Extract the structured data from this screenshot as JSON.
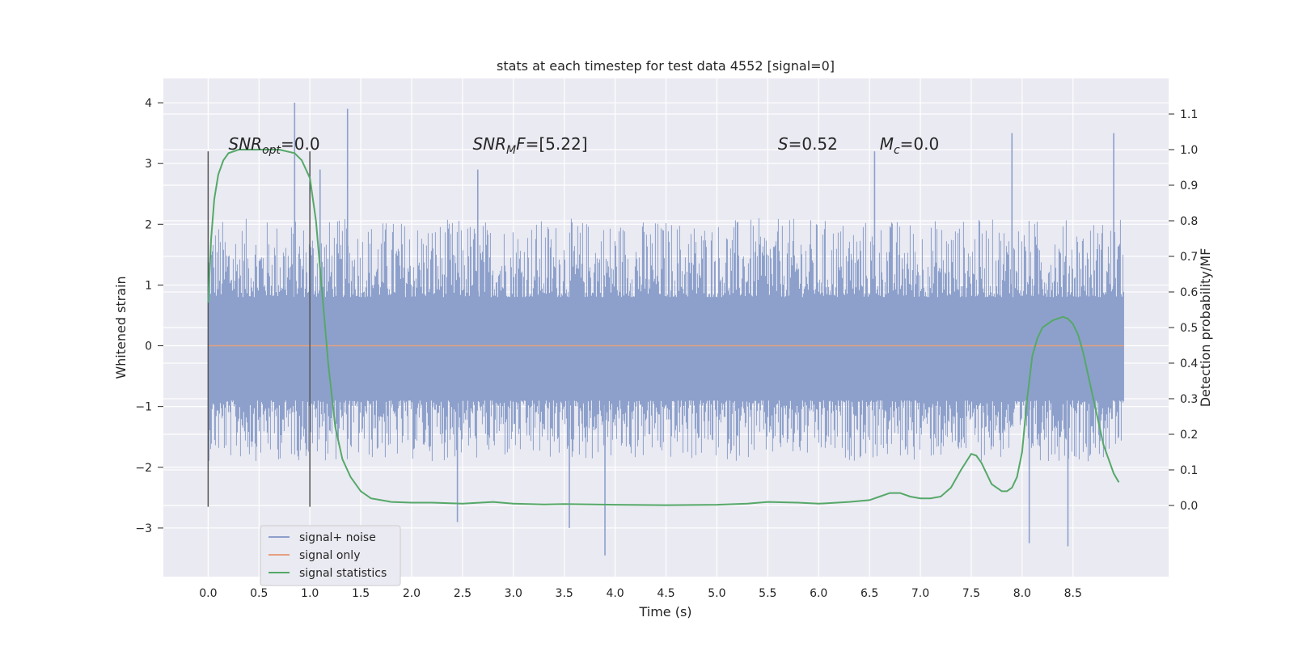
{
  "chart_data": {
    "type": "line",
    "title": "stats at each timestep for test data 4552 [signal=0]",
    "xlabel": "Time (s)",
    "ylabel": "Whitened strain",
    "y2label": "Detection probability/MF",
    "xlim": [
      -0.44,
      9.44
    ],
    "ylim": [
      -3.8,
      4.4
    ],
    "y2lim": [
      -0.2,
      1.2
    ],
    "x_ticks": [
      "0.0",
      "0.5",
      "1.0",
      "1.5",
      "2.0",
      "2.5",
      "3.0",
      "3.5",
      "4.0",
      "4.5",
      "5.0",
      "5.5",
      "6.0",
      "6.5",
      "7.0",
      "7.5",
      "8.0",
      "8.5"
    ],
    "y_ticks": [
      "4",
      "3",
      "2",
      "1",
      "0",
      "−1",
      "−2",
      "−3"
    ],
    "y_tick_values": [
      4,
      3,
      2,
      1,
      0,
      -1,
      -2,
      -3
    ],
    "y2_ticks": [
      "1.1",
      "1.0",
      "0.9",
      "0.8",
      "0.7",
      "0.6",
      "0.5",
      "0.4",
      "0.3",
      "0.2",
      "0.1",
      "0.0"
    ],
    "y2_tick_values": [
      1.1,
      1.0,
      0.9,
      0.8,
      0.7,
      0.6,
      0.5,
      0.4,
      0.3,
      0.2,
      0.1,
      0.0
    ],
    "grid": true,
    "legend_position": "lower-left",
    "background": "#eaeaf2",
    "annotations": [
      {
        "label": "SNR_opt=0.0",
        "x": 0.2,
        "y2": 1.0
      },
      {
        "label": "SNR_MF=[5.22]",
        "x": 2.6,
        "y2": 1.0
      },
      {
        "label": "S=0.52",
        "x": 5.6,
        "y2": 1.0
      },
      {
        "label": "M_c=0.0",
        "x": 6.6,
        "y2": 1.0
      }
    ],
    "vertical_lines": [
      {
        "x": 0.0,
        "y_from": -2.65,
        "y_to": 3.2,
        "color": "#555555"
      },
      {
        "x": 1.0,
        "y_from": -2.65,
        "y_to": 3.2,
        "color": "#555555"
      }
    ],
    "series": [
      {
        "name": "signal+ noise",
        "color": "#8da0cb",
        "x_range": [
          0.0,
          9.0
        ],
        "typical_band": [
          -0.9,
          0.8
        ],
        "envelope": [
          -1.9,
          2.1
        ],
        "spikes": [
          {
            "x": 0.85,
            "y": 4.0
          },
          {
            "x": 1.37,
            "y": 3.9
          },
          {
            "x": 1.1,
            "y": 2.9
          },
          {
            "x": 2.65,
            "y": 2.9
          },
          {
            "x": 6.55,
            "y": 3.2
          },
          {
            "x": 7.9,
            "y": 3.5
          },
          {
            "x": 8.9,
            "y": 3.5
          },
          {
            "x": 3.55,
            "y": -3.0
          },
          {
            "x": 3.9,
            "y": -3.45
          },
          {
            "x": 8.07,
            "y": -3.25
          },
          {
            "x": 8.45,
            "y": -3.3
          },
          {
            "x": 2.45,
            "y": -2.9
          }
        ]
      },
      {
        "name": "signal only",
        "color": "#e5a07e",
        "x": [
          0.0,
          9.0
        ],
        "y": [
          0.0,
          0.0
        ]
      },
      {
        "name": "signal statistics",
        "color": "#55a868",
        "axis": "y2",
        "x": [
          0.0,
          0.03,
          0.06,
          0.1,
          0.15,
          0.2,
          0.3,
          0.5,
          0.7,
          0.85,
          0.92,
          1.0,
          1.06,
          1.12,
          1.18,
          1.25,
          1.32,
          1.4,
          1.5,
          1.6,
          1.7,
          1.8,
          2.0,
          2.2,
          2.5,
          2.8,
          3.0,
          3.3,
          3.5,
          3.8,
          4.0,
          4.5,
          5.0,
          5.3,
          5.5,
          5.8,
          6.0,
          6.3,
          6.5,
          6.6,
          6.7,
          6.8,
          6.9,
          7.0,
          7.1,
          7.2,
          7.3,
          7.4,
          7.5,
          7.55,
          7.6,
          7.7,
          7.8,
          7.85,
          7.9,
          7.95,
          8.0,
          8.05,
          8.1,
          8.15,
          8.2,
          8.3,
          8.4,
          8.45,
          8.5,
          8.55,
          8.6,
          8.7,
          8.8,
          8.9,
          8.95
        ],
        "y": [
          0.57,
          0.75,
          0.86,
          0.93,
          0.97,
          0.99,
          1.0,
          1.0,
          1.0,
          0.99,
          0.97,
          0.92,
          0.8,
          0.6,
          0.4,
          0.22,
          0.13,
          0.08,
          0.04,
          0.02,
          0.015,
          0.01,
          0.008,
          0.008,
          0.005,
          0.01,
          0.005,
          0.003,
          0.004,
          0.003,
          0.002,
          0.001,
          0.002,
          0.005,
          0.01,
          0.008,
          0.005,
          0.01,
          0.015,
          0.025,
          0.035,
          0.035,
          0.025,
          0.02,
          0.02,
          0.025,
          0.05,
          0.1,
          0.145,
          0.14,
          0.12,
          0.06,
          0.04,
          0.04,
          0.05,
          0.08,
          0.15,
          0.3,
          0.42,
          0.47,
          0.5,
          0.52,
          0.53,
          0.525,
          0.51,
          0.48,
          0.43,
          0.3,
          0.17,
          0.09,
          0.065
        ]
      }
    ],
    "legend": [
      {
        "label": "signal+ noise",
        "color": "#8da0cb"
      },
      {
        "label": "signal only",
        "color": "#e5a07e"
      },
      {
        "label": "signal statistics",
        "color": "#55a868"
      }
    ]
  }
}
